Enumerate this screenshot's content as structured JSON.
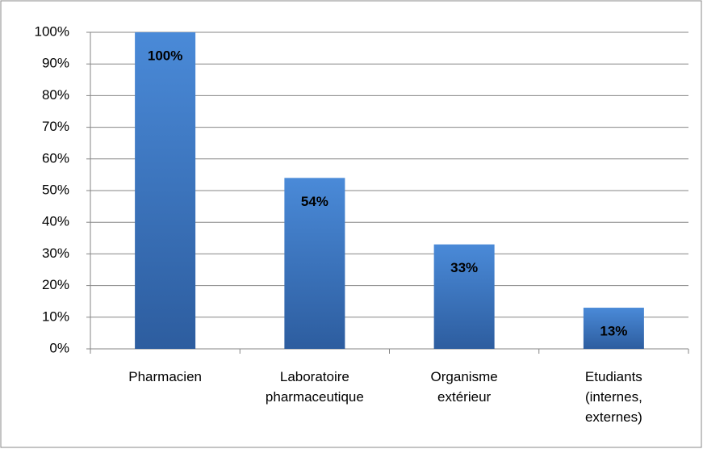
{
  "chart_data": {
    "type": "bar",
    "categories": [
      "Pharmacien",
      "Laboratoire pharmaceutique",
      "Organisme extérieur",
      "Etudiants (internes, externes)"
    ],
    "values": [
      100,
      54,
      33,
      13
    ],
    "value_labels": [
      "100%",
      "54%",
      "33%",
      "13%"
    ],
    "color": "#3a73c0",
    "ylim": [
      0,
      100
    ],
    "yticks": [
      {
        "value": 0,
        "label": "0%"
      },
      {
        "value": 10,
        "label": "10%"
      },
      {
        "value": 20,
        "label": "20%"
      },
      {
        "value": 30,
        "label": "30%"
      },
      {
        "value": 40,
        "label": "40%"
      },
      {
        "value": 50,
        "label": "50%"
      },
      {
        "value": 60,
        "label": "60%"
      },
      {
        "value": 70,
        "label": "70%"
      },
      {
        "value": 80,
        "label": "80%"
      },
      {
        "value": 90,
        "label": "90%"
      },
      {
        "value": 100,
        "label": "100%"
      }
    ],
    "grid": true
  }
}
